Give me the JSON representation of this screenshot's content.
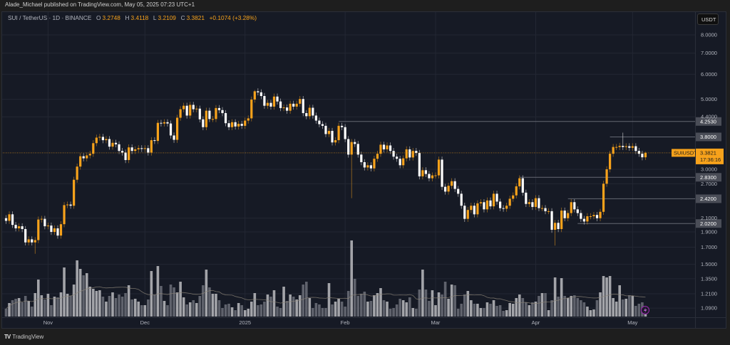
{
  "header": {
    "published": "Alade_Michael published on TradingView.com, May 05, 2025 07:23 UTC+1"
  },
  "legend": {
    "symbol": "SUI / TetherUS · 1D · BINANCE",
    "o_label": "O",
    "o": "3.2748",
    "h_label": "H",
    "h": "3.4118",
    "l_label": "L",
    "l": "3.2109",
    "c_label": "C",
    "c": "3.3821",
    "change": "+0.1074 (+3.28%)"
  },
  "currency_button": "USDT",
  "last_price": {
    "symbol_tag": "SUIUSDT",
    "price": "3.3821",
    "countdown": "17:36:16",
    "value": 3.3821
  },
  "footer": {
    "brand": "TradingView",
    "logo_glyph": "TV"
  },
  "icons": {
    "bolt": "lightning-icon"
  },
  "colors": {
    "up": "#f7a21b",
    "down": "#ffffff",
    "vol_up": "#a3a4a9",
    "vol_down": "#5f626c",
    "pane": "#161a25",
    "accent": "#f7a21b",
    "badge": "#9c27b0"
  },
  "chart_data": {
    "type": "candlestick",
    "title": "SUI / TetherUS · 1D · BINANCE",
    "ylabel": "USDT",
    "yscale": "log",
    "ylim": [
      1.09,
      8.0
    ],
    "grid": true,
    "first_open": 2.1,
    "close": [
      2.06,
      2.16,
      2.0,
      1.95,
      1.98,
      1.94,
      1.76,
      1.8,
      1.76,
      1.79,
      2.08,
      2.09,
      1.98,
      1.99,
      1.9,
      1.95,
      1.85,
      2.01,
      2.31,
      2.32,
      2.3,
      2.78,
      3.06,
      3.3,
      3.25,
      3.32,
      3.36,
      3.63,
      3.78,
      3.8,
      3.71,
      3.74,
      3.54,
      3.64,
      3.6,
      3.43,
      3.39,
      3.21,
      3.52,
      3.43,
      3.47,
      3.5,
      3.48,
      3.5,
      3.39,
      3.71,
      3.69,
      4.21,
      4.19,
      4.23,
      4.19,
      3.84,
      3.72,
      4.37,
      4.65,
      4.77,
      4.44,
      4.8,
      4.65,
      4.67,
      4.32,
      4.08,
      4.6,
      4.33,
      4.33,
      4.69,
      4.62,
      4.52,
      4.2,
      4.08,
      4.23,
      4.1,
      4.18,
      4.12,
      4.28,
      4.35,
      4.99,
      5.3,
      5.26,
      5.12,
      4.77,
      4.87,
      4.74,
      5.1,
      4.92,
      4.69,
      4.71,
      4.6,
      4.84,
      4.74,
      4.84,
      5.01,
      4.52,
      4.42,
      4.7,
      4.44,
      4.28,
      4.17,
      4.12,
      3.88,
      3.97,
      3.65,
      3.71,
      4.12,
      4.08,
      3.74,
      3.34,
      3.66,
      3.61,
      3.34,
      3.16,
      3.04,
      3.09,
      3.02,
      3.24,
      3.36,
      3.59,
      3.47,
      3.57,
      3.43,
      3.29,
      3.24,
      3.09,
      3.25,
      3.47,
      3.27,
      3.43,
      3.38,
      2.85,
      2.98,
      2.9,
      2.81,
      2.87,
      2.87,
      3.22,
      2.64,
      2.55,
      2.66,
      2.75,
      2.6,
      2.51,
      2.3,
      2.09,
      2.23,
      2.3,
      2.16,
      2.34,
      2.36,
      2.24,
      2.39,
      2.29,
      2.51,
      2.37,
      2.26,
      2.25,
      2.3,
      2.42,
      2.48,
      2.65,
      2.81,
      2.53,
      2.33,
      2.36,
      2.28,
      2.43,
      2.26,
      2.26,
      2.21,
      2.21,
      1.93,
      2.03,
      1.94,
      2.22,
      2.1,
      2.18,
      2.36,
      2.24,
      2.18,
      2.09,
      2.05,
      2.13,
      2.13,
      2.15,
      2.1,
      2.2,
      2.7,
      3.0,
      3.36,
      3.53,
      3.53,
      3.56,
      3.53,
      3.55,
      3.51,
      3.55,
      3.43,
      3.36,
      3.2748,
      3.3821
    ],
    "wick_extremes": [
      {
        "i": 9,
        "low": 1.62
      },
      {
        "i": 47,
        "high": 4.3
      },
      {
        "i": 77,
        "high": 5.35
      },
      {
        "i": 107,
        "low": 2.43
      },
      {
        "i": 170,
        "low": 1.72
      },
      {
        "i": 191,
        "high": 3.92
      },
      {
        "i": 198,
        "high": 3.4118,
        "low": 3.2109
      }
    ],
    "volume_relative": [
      11,
      19,
      23,
      25,
      26,
      20,
      29,
      22,
      14,
      33,
      52,
      30,
      24,
      32,
      16,
      28,
      27,
      34,
      69,
      32,
      29,
      45,
      79,
      67,
      58,
      61,
      42,
      39,
      36,
      37,
      28,
      21,
      29,
      34,
      26,
      31,
      28,
      33,
      44,
      24,
      25,
      21,
      16,
      16,
      24,
      64,
      31,
      71,
      43,
      22,
      16,
      45,
      41,
      34,
      49,
      27,
      17,
      20,
      23,
      19,
      29,
      44,
      66,
      41,
      32,
      32,
      23,
      12,
      17,
      18,
      13,
      9,
      19,
      16,
      9,
      11,
      21,
      33,
      16,
      17,
      21,
      31,
      28,
      37,
      14,
      12,
      42,
      22,
      31,
      28,
      24,
      30,
      45,
      49,
      26,
      12,
      19,
      17,
      12,
      12,
      47,
      17,
      21,
      25,
      21,
      14,
      36,
      107,
      53,
      29,
      32,
      35,
      21,
      22,
      30,
      33,
      40,
      23,
      21,
      11,
      12,
      17,
      25,
      23,
      20,
      27,
      12,
      11,
      38,
      66,
      38,
      22,
      37,
      16,
      34,
      31,
      49,
      25,
      45,
      44,
      11,
      18,
      31,
      36,
      23,
      18,
      18,
      12,
      12,
      20,
      18,
      23,
      15,
      16,
      8,
      9,
      19,
      18,
      26,
      31,
      26,
      20,
      16,
      20,
      21,
      29,
      33,
      33,
      9,
      23,
      55,
      28,
      54,
      29,
      26,
      29,
      30,
      26,
      23,
      20,
      14,
      9,
      10,
      23,
      34,
      57,
      55,
      57,
      26,
      21,
      44,
      24,
      25,
      30,
      29,
      15,
      18,
      20,
      14
    ],
    "volume_ma_period": 20,
    "price_ticks": [
      8.0,
      7.0,
      6.0,
      5.0,
      4.4,
      3.0,
      2.7,
      2.1,
      1.9,
      1.7,
      1.5,
      1.35,
      1.21,
      1.09
    ],
    "price_tick_labels": [
      "8.0000",
      "7.0000",
      "6.0000",
      "5.0000",
      "4.4000",
      "3.0000",
      "2.7000",
      "2.1000",
      "1.9000",
      "1.7000",
      "1.5000",
      "1.3500",
      "1.2100",
      "1.0900"
    ],
    "time_ticks": [
      {
        "label": "Nov",
        "index": 13
      },
      {
        "label": "Dec",
        "index": 43
      },
      {
        "label": "2025",
        "index": 74
      },
      {
        "label": "Feb",
        "index": 105
      },
      {
        "label": "Mar",
        "index": 133
      },
      {
        "label": "Apr",
        "index": 164
      },
      {
        "label": "May",
        "index": 194
      }
    ],
    "levels": [
      {
        "price": 4.253,
        "label": "4.2530",
        "from_index": 103
      },
      {
        "price": 3.8,
        "label": "3.8000",
        "from_index": 187
      },
      {
        "price": 2.83,
        "label": "2.8300",
        "from_index": 159
      },
      {
        "price": 2.42,
        "label": "2.4200",
        "from_index": 174
      },
      {
        "price": 2.02,
        "label": "2.0200",
        "from_index": 177
      }
    ]
  }
}
